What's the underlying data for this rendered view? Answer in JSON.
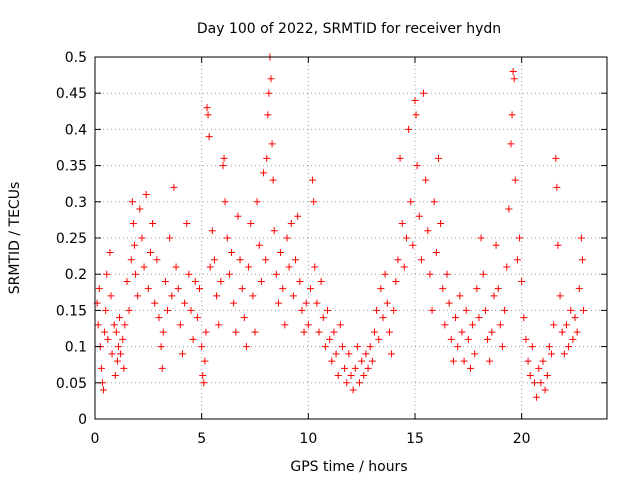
{
  "chart_data": {
    "type": "scatter",
    "title": "Day 100 of 2022, SRMTID for receiver hydn",
    "xlabel": "GPS time / hours",
    "ylabel": "SRMTID / TECUs",
    "xlim": [
      0,
      24
    ],
    "ylim": [
      0,
      0.5
    ],
    "xticks": [
      0,
      5,
      10,
      15,
      20
    ],
    "xtick_labels": [
      "0",
      "5",
      "10",
      "15",
      "20"
    ],
    "yticks": [
      0,
      0.05,
      0.1,
      0.15,
      0.2,
      0.25,
      0.3,
      0.35,
      0.4,
      0.45,
      0.5
    ],
    "ytick_labels": [
      "0",
      "0.05",
      "0.1",
      "0.15",
      "0.2",
      "0.25",
      "0.3",
      "0.35",
      "0.4",
      "0.45",
      "0.5"
    ],
    "grid": true,
    "marker": "plus",
    "color": "#ff0000",
    "series": [
      {
        "name": "SRMTID",
        "points": [
          [
            0.1,
            0.16
          ],
          [
            0.15,
            0.13
          ],
          [
            0.2,
            0.18
          ],
          [
            0.25,
            0.1
          ],
          [
            0.3,
            0.07
          ],
          [
            0.35,
            0.05
          ],
          [
            0.4,
            0.04
          ],
          [
            0.45,
            0.12
          ],
          [
            0.5,
            0.15
          ],
          [
            0.55,
            0.2
          ],
          [
            0.6,
            0.11
          ],
          [
            0.7,
            0.23
          ],
          [
            0.75,
            0.17
          ],
          [
            0.8,
            0.09
          ],
          [
            0.9,
            0.13
          ],
          [
            0.95,
            0.06
          ],
          [
            1.0,
            0.12
          ],
          [
            1.05,
            0.08
          ],
          [
            1.1,
            0.1
          ],
          [
            1.15,
            0.14
          ],
          [
            1.2,
            0.09
          ],
          [
            1.3,
            0.11
          ],
          [
            1.35,
            0.07
          ],
          [
            1.4,
            0.13
          ],
          [
            1.5,
            0.19
          ],
          [
            1.6,
            0.15
          ],
          [
            1.7,
            0.22
          ],
          [
            1.75,
            0.3
          ],
          [
            1.8,
            0.27
          ],
          [
            1.85,
            0.24
          ],
          [
            1.9,
            0.2
          ],
          [
            2.0,
            0.17
          ],
          [
            2.1,
            0.29
          ],
          [
            2.2,
            0.25
          ],
          [
            2.3,
            0.21
          ],
          [
            2.4,
            0.31
          ],
          [
            2.5,
            0.18
          ],
          [
            2.6,
            0.23
          ],
          [
            2.7,
            0.27
          ],
          [
            2.8,
            0.16
          ],
          [
            2.9,
            0.22
          ],
          [
            3.0,
            0.14
          ],
          [
            3.1,
            0.1
          ],
          [
            3.15,
            0.07
          ],
          [
            3.2,
            0.12
          ],
          [
            3.3,
            0.19
          ],
          [
            3.4,
            0.15
          ],
          [
            3.5,
            0.25
          ],
          [
            3.6,
            0.17
          ],
          [
            3.7,
            0.32
          ],
          [
            3.8,
            0.21
          ],
          [
            3.9,
            0.18
          ],
          [
            4.0,
            0.13
          ],
          [
            4.1,
            0.09
          ],
          [
            4.2,
            0.16
          ],
          [
            4.3,
            0.27
          ],
          [
            4.4,
            0.2
          ],
          [
            4.5,
            0.15
          ],
          [
            4.6,
            0.11
          ],
          [
            4.7,
            0.19
          ],
          [
            4.8,
            0.14
          ],
          [
            4.9,
            0.18
          ],
          [
            5.0,
            0.1
          ],
          [
            5.05,
            0.06
          ],
          [
            5.1,
            0.05
          ],
          [
            5.15,
            0.08
          ],
          [
            5.2,
            0.12
          ],
          [
            5.25,
            0.43
          ],
          [
            5.3,
            0.42
          ],
          [
            5.35,
            0.39
          ],
          [
            5.4,
            0.21
          ],
          [
            5.5,
            0.26
          ],
          [
            5.6,
            0.22
          ],
          [
            5.7,
            0.17
          ],
          [
            5.8,
            0.13
          ],
          [
            5.9,
            0.19
          ],
          [
            6.0,
            0.35
          ],
          [
            6.05,
            0.36
          ],
          [
            6.1,
            0.3
          ],
          [
            6.2,
            0.25
          ],
          [
            6.3,
            0.2
          ],
          [
            6.4,
            0.23
          ],
          [
            6.5,
            0.16
          ],
          [
            6.6,
            0.12
          ],
          [
            6.7,
            0.28
          ],
          [
            6.8,
            0.22
          ],
          [
            6.9,
            0.18
          ],
          [
            7.0,
            0.14
          ],
          [
            7.1,
            0.1
          ],
          [
            7.2,
            0.21
          ],
          [
            7.3,
            0.27
          ],
          [
            7.4,
            0.17
          ],
          [
            7.5,
            0.12
          ],
          [
            7.6,
            0.3
          ],
          [
            7.7,
            0.24
          ],
          [
            7.8,
            0.19
          ],
          [
            7.9,
            0.34
          ],
          [
            8.0,
            0.22
          ],
          [
            8.05,
            0.36
          ],
          [
            8.1,
            0.42
          ],
          [
            8.15,
            0.45
          ],
          [
            8.2,
            0.5
          ],
          [
            8.25,
            0.47
          ],
          [
            8.3,
            0.38
          ],
          [
            8.35,
            0.33
          ],
          [
            8.4,
            0.26
          ],
          [
            8.5,
            0.2
          ],
          [
            8.6,
            0.16
          ],
          [
            8.7,
            0.23
          ],
          [
            8.8,
            0.18
          ],
          [
            8.9,
            0.13
          ],
          [
            9.0,
            0.25
          ],
          [
            9.1,
            0.21
          ],
          [
            9.2,
            0.27
          ],
          [
            9.3,
            0.17
          ],
          [
            9.4,
            0.22
          ],
          [
            9.5,
            0.28
          ],
          [
            9.6,
            0.19
          ],
          [
            9.7,
            0.15
          ],
          [
            9.8,
            0.12
          ],
          [
            9.9,
            0.16
          ],
          [
            10.0,
            0.13
          ],
          [
            10.1,
            0.18
          ],
          [
            10.2,
            0.33
          ],
          [
            10.25,
            0.3
          ],
          [
            10.3,
            0.21
          ],
          [
            10.4,
            0.16
          ],
          [
            10.5,
            0.12
          ],
          [
            10.6,
            0.19
          ],
          [
            10.7,
            0.14
          ],
          [
            10.8,
            0.1
          ],
          [
            10.9,
            0.15
          ],
          [
            11.0,
            0.11
          ],
          [
            11.1,
            0.08
          ],
          [
            11.2,
            0.12
          ],
          [
            11.3,
            0.09
          ],
          [
            11.4,
            0.06
          ],
          [
            11.5,
            0.13
          ],
          [
            11.6,
            0.1
          ],
          [
            11.7,
            0.07
          ],
          [
            11.8,
            0.05
          ],
          [
            11.9,
            0.09
          ],
          [
            12.0,
            0.06
          ],
          [
            12.1,
            0.04
          ],
          [
            12.2,
            0.07
          ],
          [
            12.3,
            0.1
          ],
          [
            12.4,
            0.05
          ],
          [
            12.5,
            0.08
          ],
          [
            12.6,
            0.06
          ],
          [
            12.7,
            0.09
          ],
          [
            12.8,
            0.07
          ],
          [
            12.9,
            0.1
          ],
          [
            13.0,
            0.08
          ],
          [
            13.1,
            0.12
          ],
          [
            13.2,
            0.15
          ],
          [
            13.3,
            0.11
          ],
          [
            13.4,
            0.18
          ],
          [
            13.5,
            0.14
          ],
          [
            13.6,
            0.2
          ],
          [
            13.7,
            0.16
          ],
          [
            13.8,
            0.12
          ],
          [
            13.9,
            0.09
          ],
          [
            14.0,
            0.15
          ],
          [
            14.1,
            0.19
          ],
          [
            14.2,
            0.22
          ],
          [
            14.3,
            0.36
          ],
          [
            14.4,
            0.27
          ],
          [
            14.5,
            0.21
          ],
          [
            14.6,
            0.25
          ],
          [
            14.7,
            0.4
          ],
          [
            14.8,
            0.3
          ],
          [
            14.9,
            0.24
          ],
          [
            15.0,
            0.44
          ],
          [
            15.05,
            0.42
          ],
          [
            15.1,
            0.35
          ],
          [
            15.2,
            0.28
          ],
          [
            15.3,
            0.22
          ],
          [
            15.4,
            0.45
          ],
          [
            15.5,
            0.33
          ],
          [
            15.6,
            0.26
          ],
          [
            15.7,
            0.2
          ],
          [
            15.8,
            0.15
          ],
          [
            15.9,
            0.3
          ],
          [
            16.0,
            0.23
          ],
          [
            16.1,
            0.36
          ],
          [
            16.2,
            0.27
          ],
          [
            16.3,
            0.18
          ],
          [
            16.4,
            0.13
          ],
          [
            16.5,
            0.2
          ],
          [
            16.6,
            0.16
          ],
          [
            16.7,
            0.11
          ],
          [
            16.8,
            0.08
          ],
          [
            16.9,
            0.14
          ],
          [
            17.0,
            0.1
          ],
          [
            17.1,
            0.17
          ],
          [
            17.2,
            0.12
          ],
          [
            17.3,
            0.08
          ],
          [
            17.4,
            0.15
          ],
          [
            17.5,
            0.11
          ],
          [
            17.6,
            0.07
          ],
          [
            17.7,
            0.13
          ],
          [
            17.8,
            0.09
          ],
          [
            17.9,
            0.18
          ],
          [
            18.0,
            0.14
          ],
          [
            18.1,
            0.25
          ],
          [
            18.2,
            0.2
          ],
          [
            18.3,
            0.15
          ],
          [
            18.4,
            0.11
          ],
          [
            18.5,
            0.08
          ],
          [
            18.6,
            0.12
          ],
          [
            18.7,
            0.17
          ],
          [
            18.8,
            0.24
          ],
          [
            18.9,
            0.18
          ],
          [
            19.0,
            0.13
          ],
          [
            19.1,
            0.1
          ],
          [
            19.2,
            0.15
          ],
          [
            19.3,
            0.21
          ],
          [
            19.4,
            0.29
          ],
          [
            19.5,
            0.38
          ],
          [
            19.55,
            0.42
          ],
          [
            19.6,
            0.48
          ],
          [
            19.65,
            0.47
          ],
          [
            19.7,
            0.33
          ],
          [
            19.8,
            0.22
          ],
          [
            19.9,
            0.25
          ],
          [
            20.0,
            0.19
          ],
          [
            20.1,
            0.14
          ],
          [
            20.2,
            0.11
          ],
          [
            20.3,
            0.08
          ],
          [
            20.4,
            0.06
          ],
          [
            20.5,
            0.1
          ],
          [
            20.6,
            0.05
          ],
          [
            20.7,
            0.03
          ],
          [
            20.8,
            0.07
          ],
          [
            20.9,
            0.05
          ],
          [
            21.0,
            0.08
          ],
          [
            21.1,
            0.04
          ],
          [
            21.2,
            0.06
          ],
          [
            21.3,
            0.1
          ],
          [
            21.4,
            0.09
          ],
          [
            21.5,
            0.13
          ],
          [
            21.6,
            0.36
          ],
          [
            21.65,
            0.32
          ],
          [
            21.7,
            0.24
          ],
          [
            21.8,
            0.17
          ],
          [
            21.9,
            0.12
          ],
          [
            22.0,
            0.09
          ],
          [
            22.1,
            0.13
          ],
          [
            22.2,
            0.1
          ],
          [
            22.3,
            0.15
          ],
          [
            22.4,
            0.11
          ],
          [
            22.5,
            0.14
          ],
          [
            22.6,
            0.12
          ],
          [
            22.7,
            0.18
          ],
          [
            22.8,
            0.25
          ],
          [
            22.85,
            0.22
          ],
          [
            22.9,
            0.15
          ]
        ]
      }
    ]
  }
}
